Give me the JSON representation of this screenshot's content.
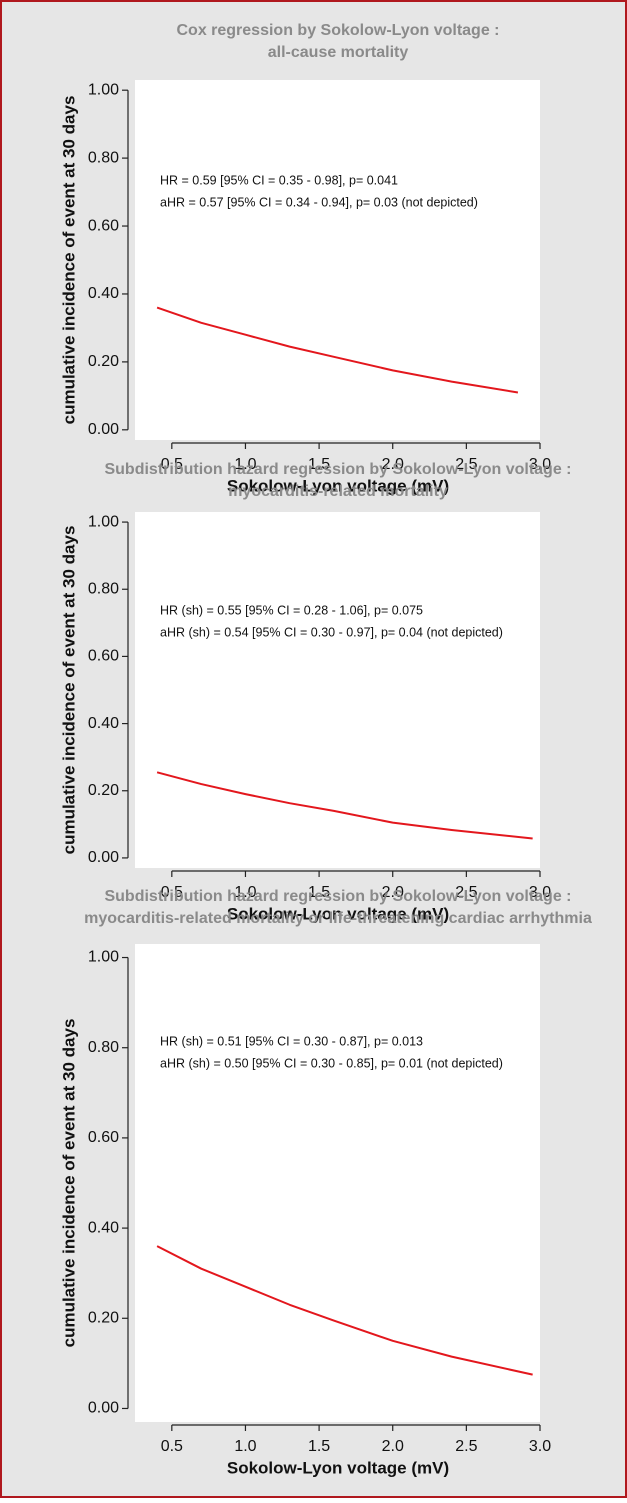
{
  "chart_data": [
    {
      "type": "line",
      "title": [
        "Cox regression by Sokolow-Lyon voltage :",
        "all-cause mortality"
      ],
      "annotations": [
        "HR = 0.59 [95% CI = 0.35 - 0.98], p= 0.041",
        "aHR = 0.57 [95% CI = 0.34 - 0.94], p= 0.03 (not depicted)"
      ],
      "x_label": "Sokolow-Lyon voltage (mV)",
      "y_label": "cumulative incidence of event at 30 days",
      "x": [
        0.4,
        0.7,
        1.0,
        1.3,
        1.6,
        2.0,
        2.4,
        2.85
      ],
      "values": [
        0.36,
        0.315,
        0.28,
        0.245,
        0.215,
        0.175,
        0.142,
        0.11
      ],
      "color": "#e3171d",
      "xlim": [
        0.25,
        3.0
      ],
      "xticks": [
        0.5,
        {
          "value": 1,
          "label": "1.0"
        },
        1.5,
        {
          "value": 2,
          "label": "2.0"
        },
        2.5,
        {
          "value": 3,
          "label": "3.0"
        }
      ],
      "ylim": [
        -0.03,
        1.03
      ],
      "yticks": [
        {
          "value": 0,
          "label": "0.00"
        },
        {
          "value": 0.2,
          "label": "0.20"
        },
        {
          "value": 0.4,
          "label": "0.40"
        },
        {
          "value": 0.6,
          "label": "0.60"
        },
        {
          "value": 0.8,
          "label": "0.80"
        },
        {
          "value": 1,
          "label": "1.00"
        }
      ]
    },
    {
      "type": "line",
      "title": [
        "Subdistribution hazard regression by Sokolow-Lyon voltage :",
        "myocarditis-related mortality"
      ],
      "annotations": [
        "HR (sh) = 0.55 [95% CI = 0.28 - 1.06], p= 0.075",
        "aHR (sh) = 0.54 [95% CI = 0.30 - 0.97], p= 0.04 (not depicted)"
      ],
      "x_label": "Sokolow-Lyon voltage (mV)",
      "y_label": "cumulative incidence of event at 30 days",
      "x": [
        0.4,
        0.7,
        1.0,
        1.3,
        1.6,
        2.0,
        2.4,
        2.95
      ],
      "values": [
        0.255,
        0.22,
        0.19,
        0.163,
        0.14,
        0.105,
        0.083,
        0.058
      ],
      "color": "#e3171d",
      "xlim": [
        0.25,
        3.0
      ],
      "xticks": [
        0.5,
        {
          "value": 1,
          "label": "1.0"
        },
        1.5,
        {
          "value": 2,
          "label": "2.0"
        },
        2.5,
        {
          "value": 3,
          "label": "3.0"
        }
      ],
      "ylim": [
        -0.03,
        1.03
      ],
      "yticks": [
        {
          "value": 0,
          "label": "0.00"
        },
        {
          "value": 0.2,
          "label": "0.20"
        },
        {
          "value": 0.4,
          "label": "0.40"
        },
        {
          "value": 0.6,
          "label": "0.60"
        },
        {
          "value": 0.8,
          "label": "0.80"
        },
        {
          "value": 1,
          "label": "1.00"
        }
      ]
    },
    {
      "type": "line",
      "title": [
        "Subdistribution hazard regression by Sokolow-Lyon voltage :",
        "myocarditis-related mortality or life-threatening cardiac arrhythmia"
      ],
      "annotations": [
        "HR (sh) = 0.51 [95% CI = 0.30 - 0.87], p= 0.013",
        "aHR (sh) = 0.50 [95% CI = 0.30 - 0.85], p= 0.01 (not depicted)"
      ],
      "x_label": "Sokolow-Lyon voltage (mV)",
      "y_label": "cumulative incidence of event at 30 days",
      "x": [
        0.4,
        0.7,
        1.0,
        1.3,
        1.6,
        2.0,
        2.4,
        2.95
      ],
      "values": [
        0.36,
        0.31,
        0.27,
        0.23,
        0.195,
        0.15,
        0.115,
        0.075
      ],
      "color": "#e3171d",
      "xlim": [
        0.25,
        3.0
      ],
      "xticks": [
        0.5,
        {
          "value": 1,
          "label": "1.0"
        },
        1.5,
        {
          "value": 2,
          "label": "2.0"
        },
        2.5,
        {
          "value": 3,
          "label": "3.0"
        }
      ],
      "ylim": [
        -0.03,
        1.03
      ],
      "yticks": [
        {
          "value": 0,
          "label": "0.00"
        },
        {
          "value": 0.2,
          "label": "0.20"
        },
        {
          "value": 0.4,
          "label": "0.40"
        },
        {
          "value": 0.6,
          "label": "0.60"
        },
        {
          "value": 0.8,
          "label": "0.80"
        },
        {
          "value": 1,
          "label": "1.00"
        }
      ]
    }
  ]
}
